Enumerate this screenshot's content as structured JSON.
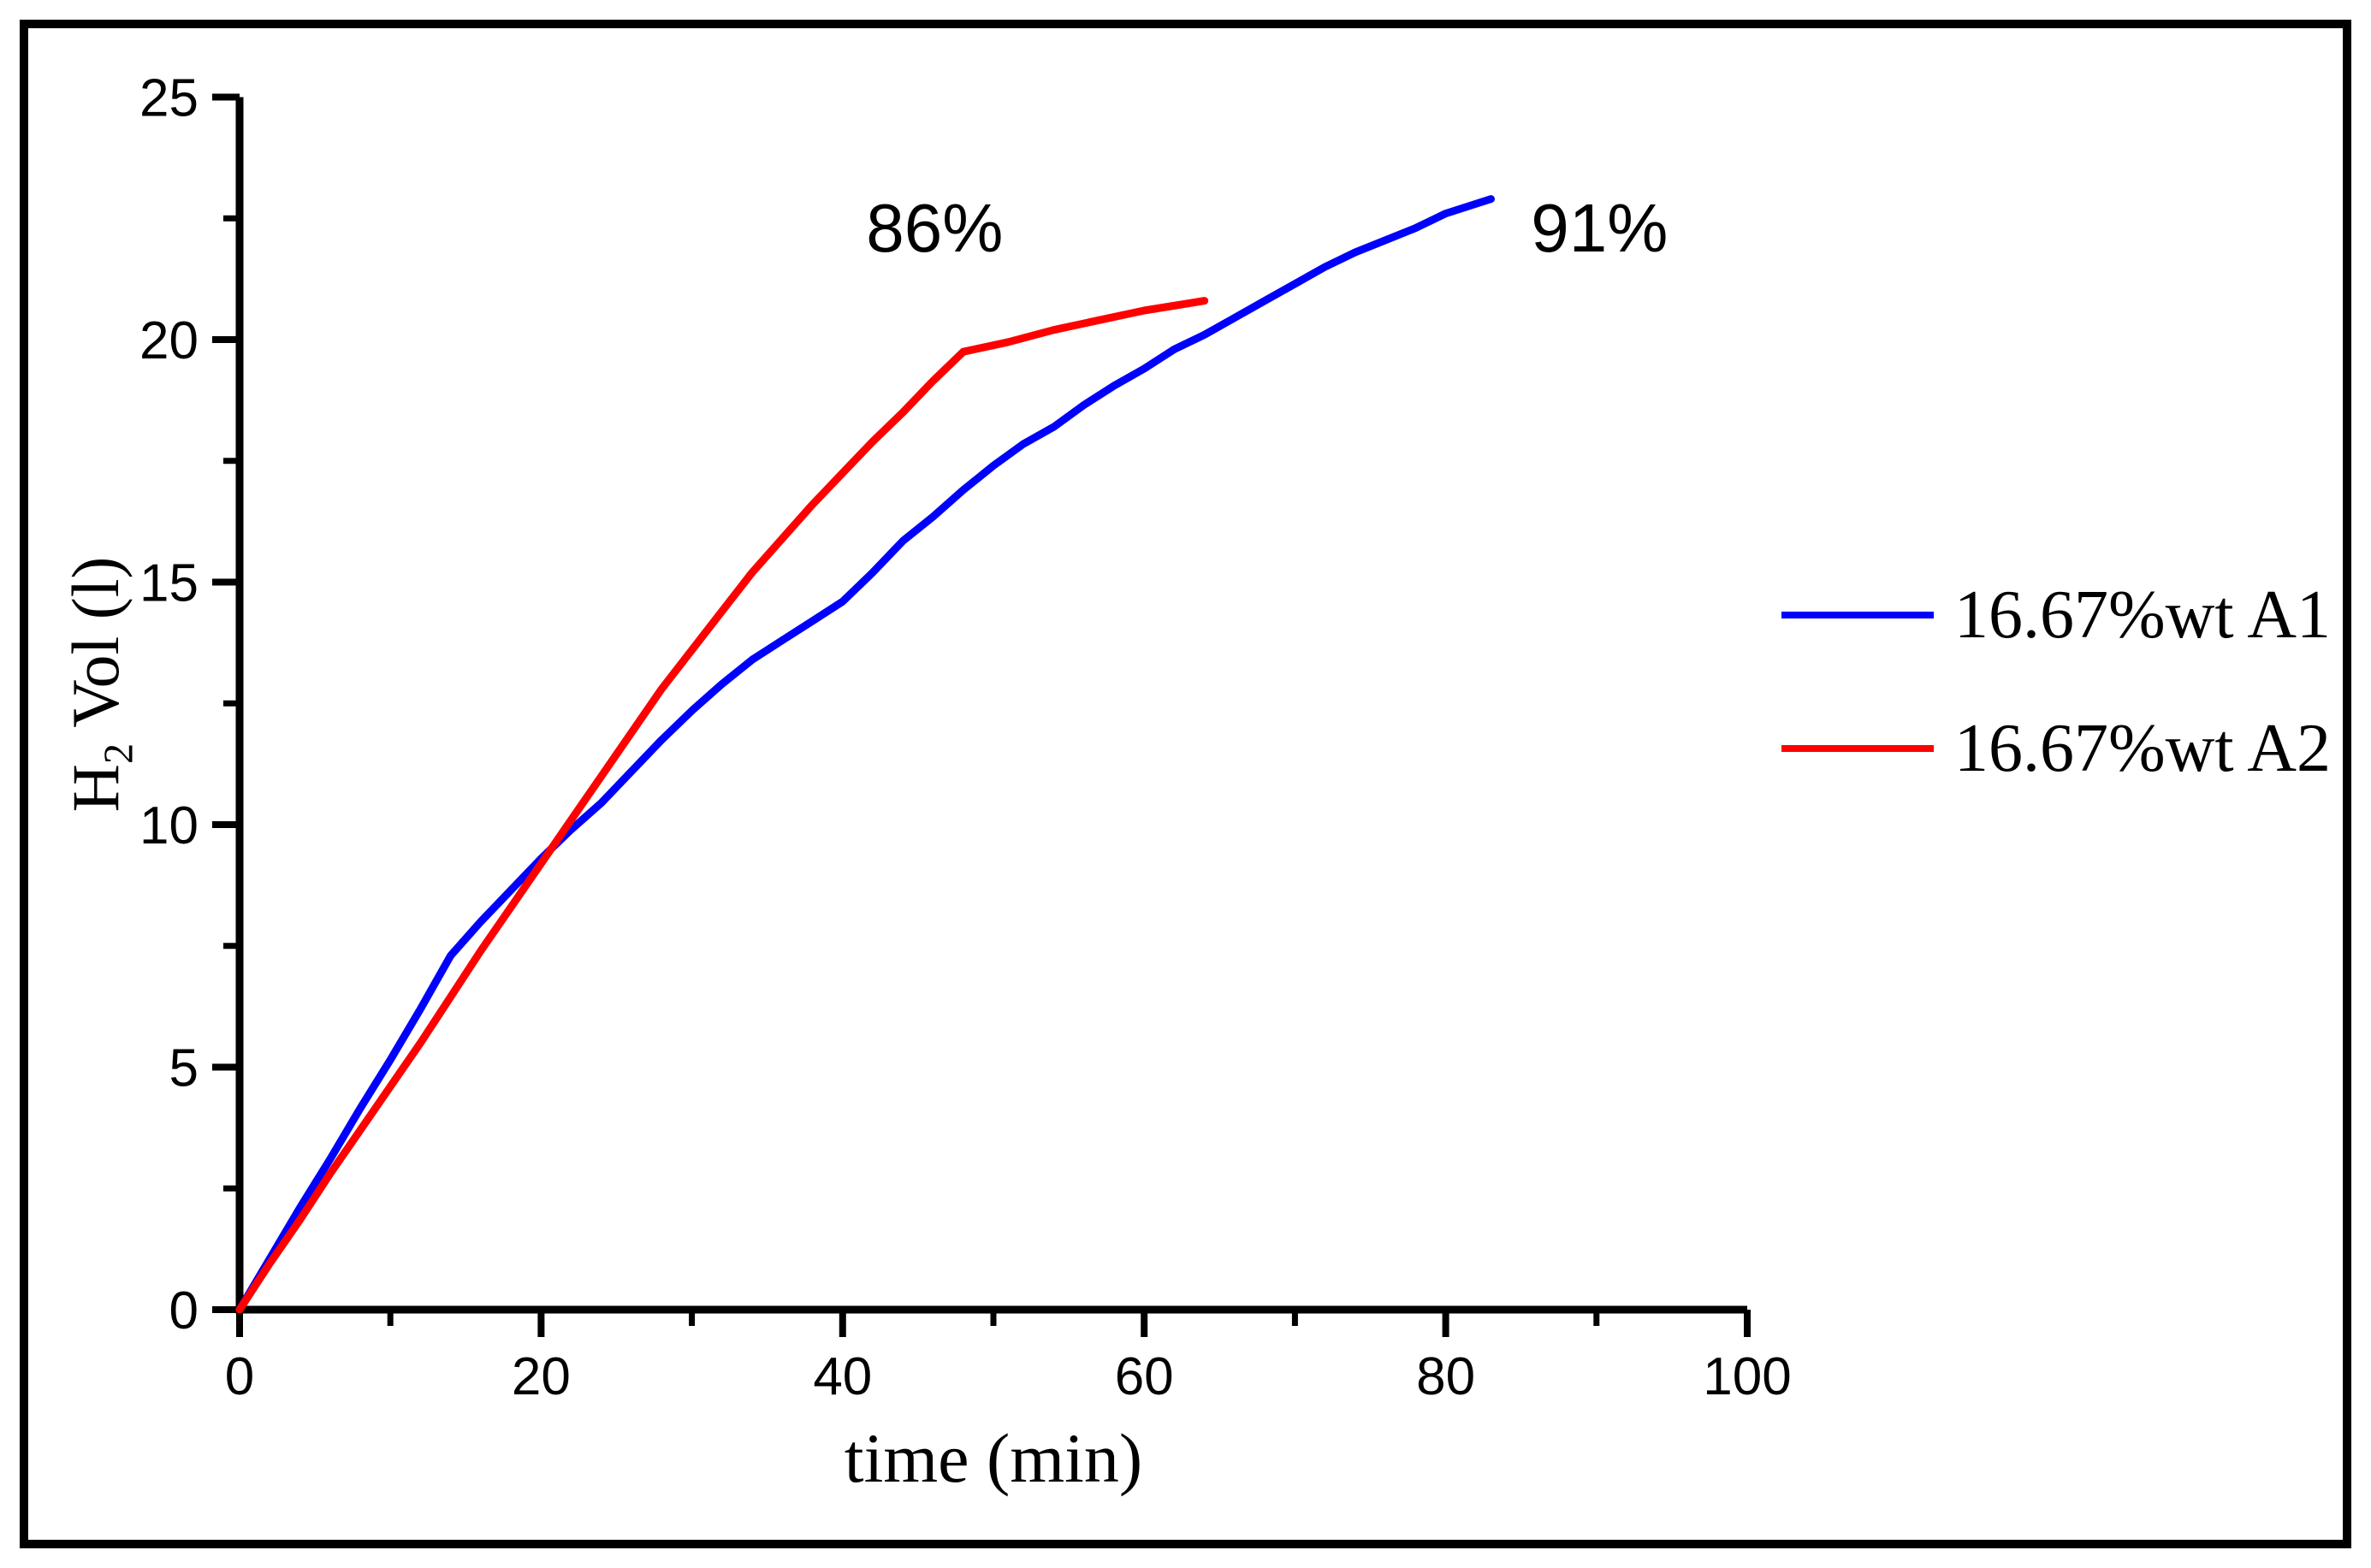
{
  "figure": {
    "background": "#ffffff",
    "border_color": "#000000",
    "axis_color": "#000000",
    "tick_label_color": "#000000"
  },
  "chart_data": {
    "type": "line",
    "title": "",
    "xlabel": "time (min)",
    "ylabel": "H2 Vol (l)",
    "ylabel_parts": {
      "base": "H",
      "sub": "2",
      "rest": " Vol (l)"
    },
    "xlim": [
      0,
      100
    ],
    "ylim": [
      0,
      25
    ],
    "x_ticks_major": [
      0,
      20,
      40,
      60,
      80,
      100
    ],
    "x_ticks_minor": [
      10,
      30,
      50,
      70,
      90
    ],
    "y_ticks_major": [
      0,
      5,
      10,
      15,
      20,
      25
    ],
    "y_ticks_minor": [
      2.5,
      7.5,
      12.5,
      17.5,
      22.5
    ],
    "grid": false,
    "legend_position": "right-outside",
    "series": [
      {
        "name": "16.67%wt A1",
        "color": "#0000ff",
        "points": [
          [
            0,
            0
          ],
          [
            2,
            1.05
          ],
          [
            4,
            2.1
          ],
          [
            6,
            3.1
          ],
          [
            8,
            4.15
          ],
          [
            10,
            5.15
          ],
          [
            12,
            6.2
          ],
          [
            14,
            7.3
          ],
          [
            16,
            8.0
          ],
          [
            18,
            8.65
          ],
          [
            20,
            9.3
          ],
          [
            22,
            9.9
          ],
          [
            24,
            10.45
          ],
          [
            26,
            11.1
          ],
          [
            28,
            11.75
          ],
          [
            30,
            12.35
          ],
          [
            32,
            12.9
          ],
          [
            34,
            13.4
          ],
          [
            36,
            13.8
          ],
          [
            38,
            14.2
          ],
          [
            40,
            14.6
          ],
          [
            42,
            15.2
          ],
          [
            44,
            15.85
          ],
          [
            46,
            16.35
          ],
          [
            48,
            16.9
          ],
          [
            50,
            17.4
          ],
          [
            52,
            17.85
          ],
          [
            54,
            18.2
          ],
          [
            56,
            18.65
          ],
          [
            58,
            19.05
          ],
          [
            60,
            19.4
          ],
          [
            62,
            19.8
          ],
          [
            64,
            20.1
          ],
          [
            66,
            20.45
          ],
          [
            68,
            20.8
          ],
          [
            70,
            21.15
          ],
          [
            72,
            21.5
          ],
          [
            74,
            21.8
          ],
          [
            76,
            22.05
          ],
          [
            78,
            22.3
          ],
          [
            80,
            22.6
          ],
          [
            83,
            22.9
          ]
        ]
      },
      {
        "name": "16.67%wt A2",
        "color": "#ff0000",
        "points": [
          [
            0,
            0
          ],
          [
            2,
            0.95
          ],
          [
            4,
            1.85
          ],
          [
            6,
            2.8
          ],
          [
            8,
            3.7
          ],
          [
            10,
            4.6
          ],
          [
            12,
            5.5
          ],
          [
            14,
            6.45
          ],
          [
            16,
            7.4
          ],
          [
            18,
            8.3
          ],
          [
            20,
            9.2
          ],
          [
            22,
            10.1
          ],
          [
            24,
            11.0
          ],
          [
            26,
            11.9
          ],
          [
            28,
            12.8
          ],
          [
            30,
            13.6
          ],
          [
            32,
            14.4
          ],
          [
            34,
            15.2
          ],
          [
            36,
            15.9
          ],
          [
            38,
            16.6
          ],
          [
            40,
            17.25
          ],
          [
            42,
            17.9
          ],
          [
            44,
            18.5
          ],
          [
            46,
            19.15
          ],
          [
            48,
            19.75
          ],
          [
            51,
            19.95
          ],
          [
            54,
            20.2
          ],
          [
            57,
            20.4
          ],
          [
            60,
            20.6
          ],
          [
            64,
            20.8
          ]
        ]
      }
    ],
    "annotations": [
      {
        "label": "86%",
        "x": 46.1,
        "y": 22.3,
        "series": "16.67%wt A2"
      },
      {
        "label": "91%",
        "x": 90.2,
        "y": 22.3,
        "series": "16.67%wt A1"
      }
    ]
  }
}
